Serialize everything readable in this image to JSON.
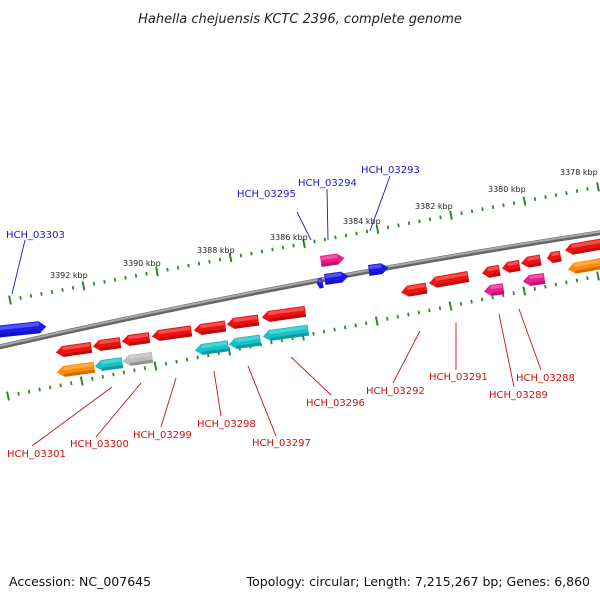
{
  "title": "Hahella chejuensis KCTC 2396, complete genome",
  "footer": {
    "accession": "Accession: NC_007645",
    "topology": "Topology: circular; Length: 7,215,267 bp; Genes: 6,860"
  },
  "colors": {
    "backbone": "#888888",
    "tick": "#2a8a2a",
    "label_top": "#1a1acc",
    "label_bottom": "#cc1111",
    "gene_red": "#ee1111",
    "gene_blue": "#1a1aee",
    "gene_magenta": "#ee1a8a",
    "gene_cyan": "#14c2c8",
    "gene_orange": "#ff8c00",
    "gene_gray": "#bbbbbb"
  },
  "scale_labels": [
    "3392 kbp",
    "3390 kbp",
    "3388 kbp",
    "3386 kbp",
    "3384 kbp",
    "3382 kbp",
    "3380 kbp",
    "3378 kbp"
  ],
  "top_genes": [
    "HCH_03303",
    "HCH_03295",
    "HCH_03294",
    "HCH_03293"
  ],
  "bottom_genes": [
    "HCH_03301",
    "HCH_03300",
    "HCH_03299",
    "HCH_03298",
    "HCH_03297",
    "HCH_03296",
    "HCH_03292",
    "HCH_03291",
    "HCH_03289",
    "HCH_03288"
  ]
}
